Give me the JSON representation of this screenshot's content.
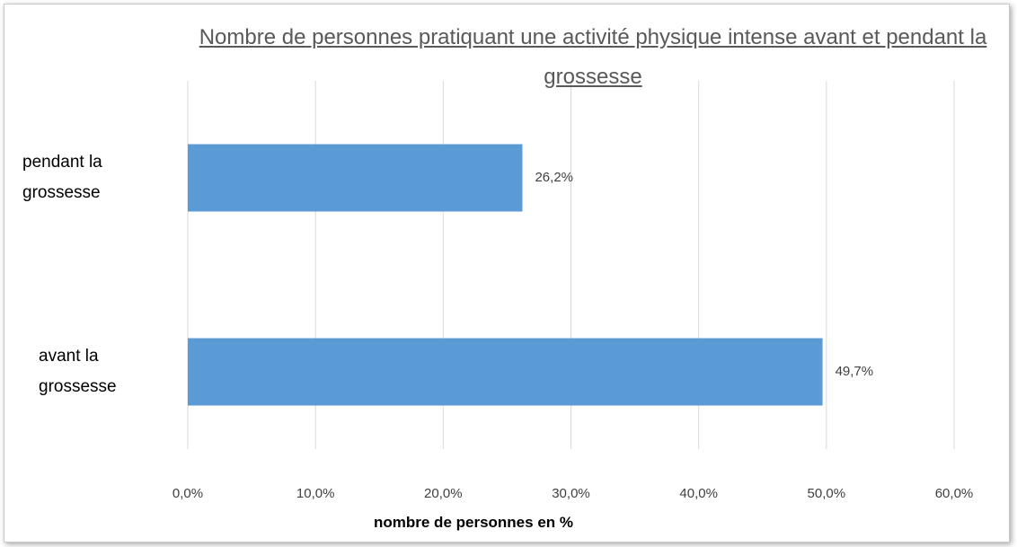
{
  "chart_data": {
    "type": "bar",
    "orientation": "horizontal",
    "title": "Nombre de personnes pratiquant une activité physique intense avant et pendant la grossesse",
    "categories": [
      "pendant la grossesse",
      "avant la grossesse"
    ],
    "values": [
      26.2,
      49.7
    ],
    "value_labels": [
      "26,2%",
      "49,7%"
    ],
    "color": "#5b9bd5",
    "xlabel": "nombre de personnes en %",
    "xlim": [
      0,
      60
    ],
    "xticks": [
      {
        "value": 0,
        "label": "0,0%"
      },
      {
        "value": 10,
        "label": "10,0%"
      },
      {
        "value": 20,
        "label": "20,0%"
      },
      {
        "value": 30,
        "label": "30,0%"
      },
      {
        "value": 40,
        "label": "40,0%"
      },
      {
        "value": 50,
        "label": "50,0%"
      },
      {
        "value": 60,
        "label": "60,0%"
      }
    ],
    "grid": true
  }
}
